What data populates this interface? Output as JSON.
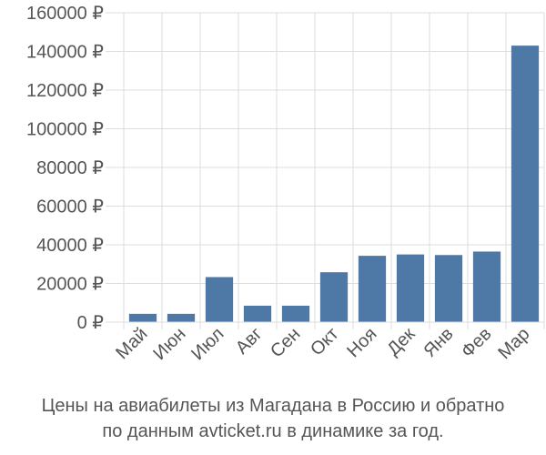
{
  "chart_data": {
    "type": "bar",
    "categories": [
      "Май",
      "Июн",
      "Июл",
      "Авг",
      "Сен",
      "Окт",
      "Ноя",
      "Дек",
      "Янв",
      "Фев",
      "Мар"
    ],
    "values": [
      4300,
      4300,
      23300,
      8500,
      8500,
      25800,
      34300,
      35000,
      34700,
      36500,
      143000
    ],
    "ylim": [
      0,
      160000
    ],
    "yticks": [
      "0 ₽",
      "20000 ₽",
      "40000 ₽",
      "60000 ₽",
      "80000 ₽",
      "100000 ₽",
      "120000 ₽",
      "140000 ₽",
      "160000 ₽"
    ],
    "ytick_values": [
      0,
      20000,
      40000,
      60000,
      80000,
      100000,
      120000,
      140000,
      160000
    ],
    "grid": true,
    "legend": "none"
  },
  "caption": {
    "line1": "Цены на авиабилеты из Магадана в Россию и обратно",
    "line2": "по данным avticket.ru в динамике за год."
  },
  "colors": {
    "bar": "#4e79a7",
    "grid": "#dddddd",
    "axis": "#555555"
  }
}
